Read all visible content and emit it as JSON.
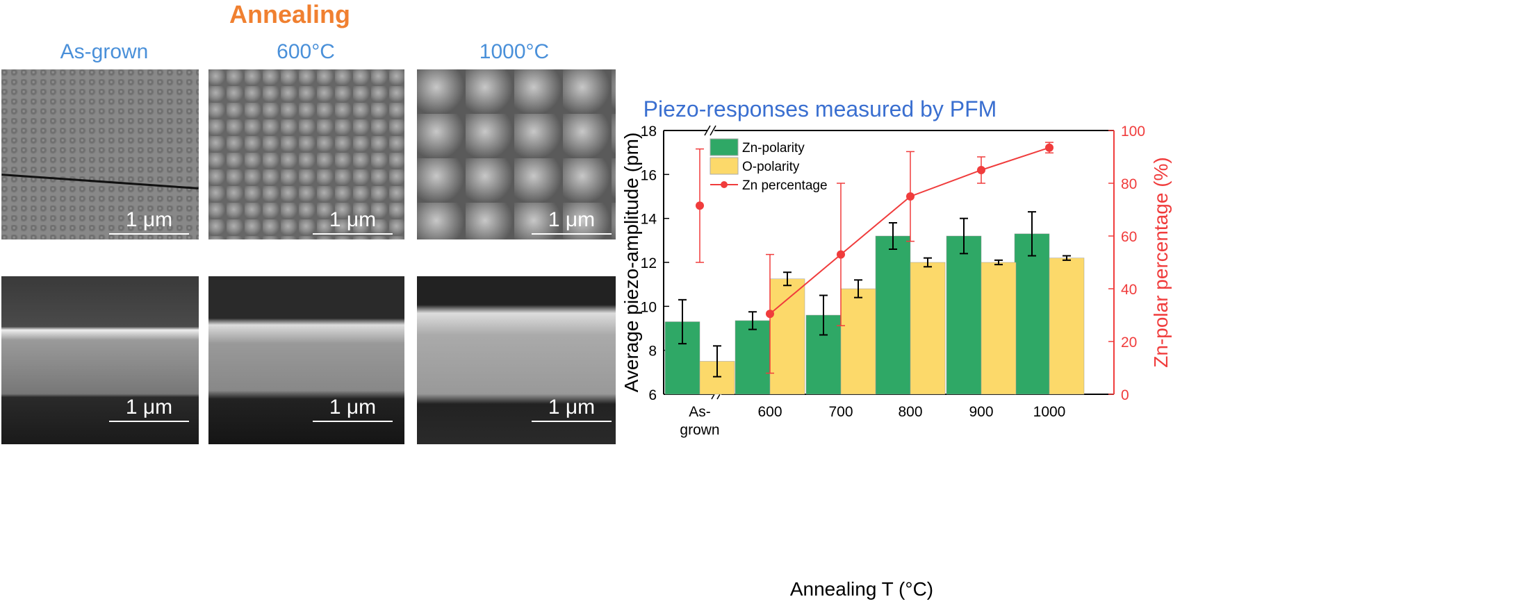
{
  "panel_labels": {
    "annealing": "Annealing",
    "as_grown": "As-grown",
    "t600": "600°C",
    "t1000": "1000°C"
  },
  "scale_bar": "1 μm",
  "chart_data": {
    "type": "bar",
    "title": "Piezo-responses measured by PFM",
    "xlabel": "Annealing T (°C)",
    "ylabel": "Average piezo-amplitude (pm)",
    "y2label": "Zn-polar percentage (%)",
    "categories": [
      "As-\ngrown",
      "600",
      "700",
      "800",
      "900",
      "1000"
    ],
    "ylim": [
      6,
      18
    ],
    "y2lim": [
      0,
      100
    ],
    "yticks": [
      6,
      8,
      10,
      12,
      14,
      16,
      18
    ],
    "y2ticks": [
      0,
      20,
      40,
      60,
      80,
      100
    ],
    "axis_break": "between As-grown and 600",
    "legend_position": "top-left",
    "series": [
      {
        "name": "Zn-polarity",
        "type": "bar",
        "axis": "left",
        "color": "#2fa866",
        "values": [
          9.3,
          9.35,
          9.6,
          13.2,
          13.2,
          13.3
        ],
        "errors": [
          1.0,
          0.4,
          0.9,
          0.6,
          0.8,
          1.0
        ]
      },
      {
        "name": "O-polarity",
        "type": "bar",
        "axis": "left",
        "color": "#fcd96a",
        "values": [
          7.5,
          11.25,
          10.8,
          12.0,
          12.0,
          12.2
        ],
        "errors": [
          0.7,
          0.3,
          0.4,
          0.2,
          0.1,
          0.1
        ]
      },
      {
        "name": "Zn percentage",
        "type": "line",
        "axis": "right",
        "color": "#f03c3c",
        "values": [
          71.5,
          30.5,
          53,
          75,
          85,
          93.5
        ],
        "errors": [
          21.5,
          22.5,
          27,
          17,
          5,
          2
        ]
      }
    ]
  }
}
